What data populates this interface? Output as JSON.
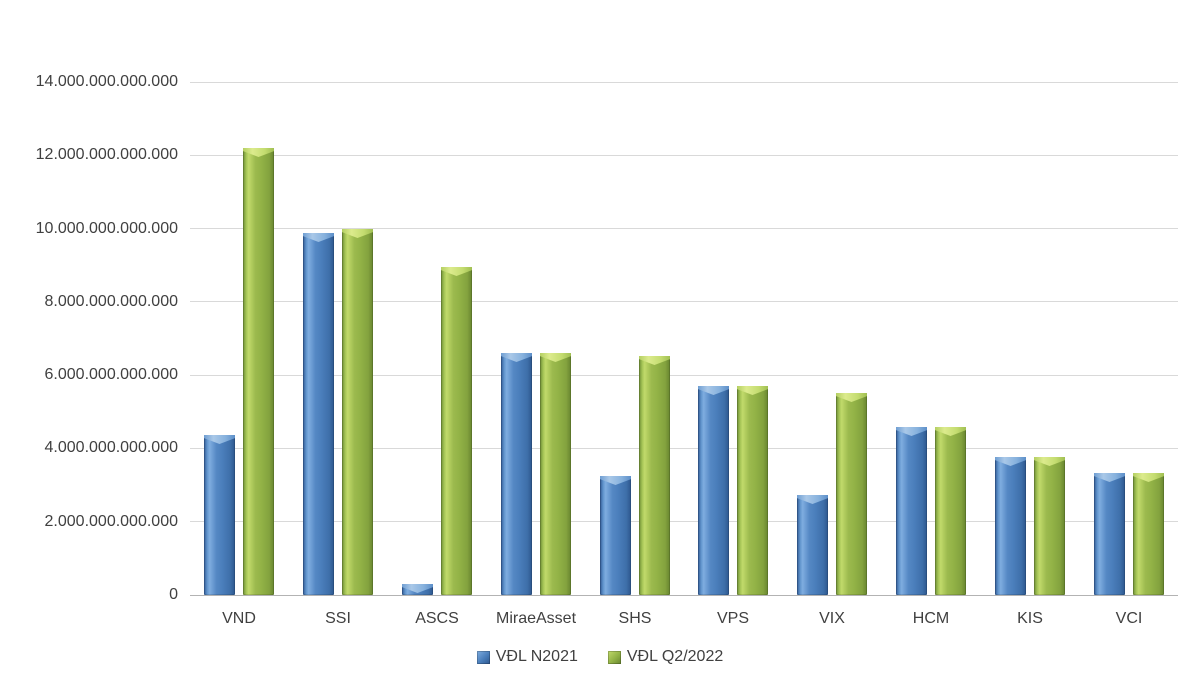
{
  "page": {
    "background": "#ffffff"
  },
  "chart_data": {
    "type": "bar",
    "title": "",
    "categories": [
      "VND",
      "SSI",
      "ASCS",
      "MiraeAsset",
      "SHS",
      "VPS",
      "VIX",
      "HCM",
      "KIS",
      "VCI"
    ],
    "series": [
      {
        "name": "VĐL N2021",
        "color": "#4F81BD",
        "values": [
          4370000000000,
          9880000000000,
          300000000000,
          6600000000000,
          3250000000000,
          5700000000000,
          2730000000000,
          4580000000000,
          3770000000000,
          3330000000000
        ]
      },
      {
        "name": "VĐL Q2/2022",
        "color": "#9BBB59",
        "values": [
          12200000000000,
          9990000000000,
          8950000000000,
          6600000000000,
          6520000000000,
          5700000000000,
          5510000000000,
          4580000000000,
          3770000000000,
          3330000000000
        ]
      }
    ],
    "xlabel": "",
    "ylabel": "",
    "ylim": [
      0,
      14000000000000
    ],
    "ytick_step": 2000000000000,
    "ytick_labels": [
      "0",
      "2.000.000.000.000",
      "4.000.000.000.000",
      "6.000.000.000.000",
      "8.000.000.000.000",
      "10.000.000.000.000",
      "12.000.000.000.000",
      "14.000.000.000.000"
    ],
    "grid": true,
    "gridline_color": "#d9d9d9",
    "axis_line_color": "#b3b3b3",
    "text_color": "#404040",
    "legend_position": "bottom",
    "number_format": "dot-thousands"
  }
}
